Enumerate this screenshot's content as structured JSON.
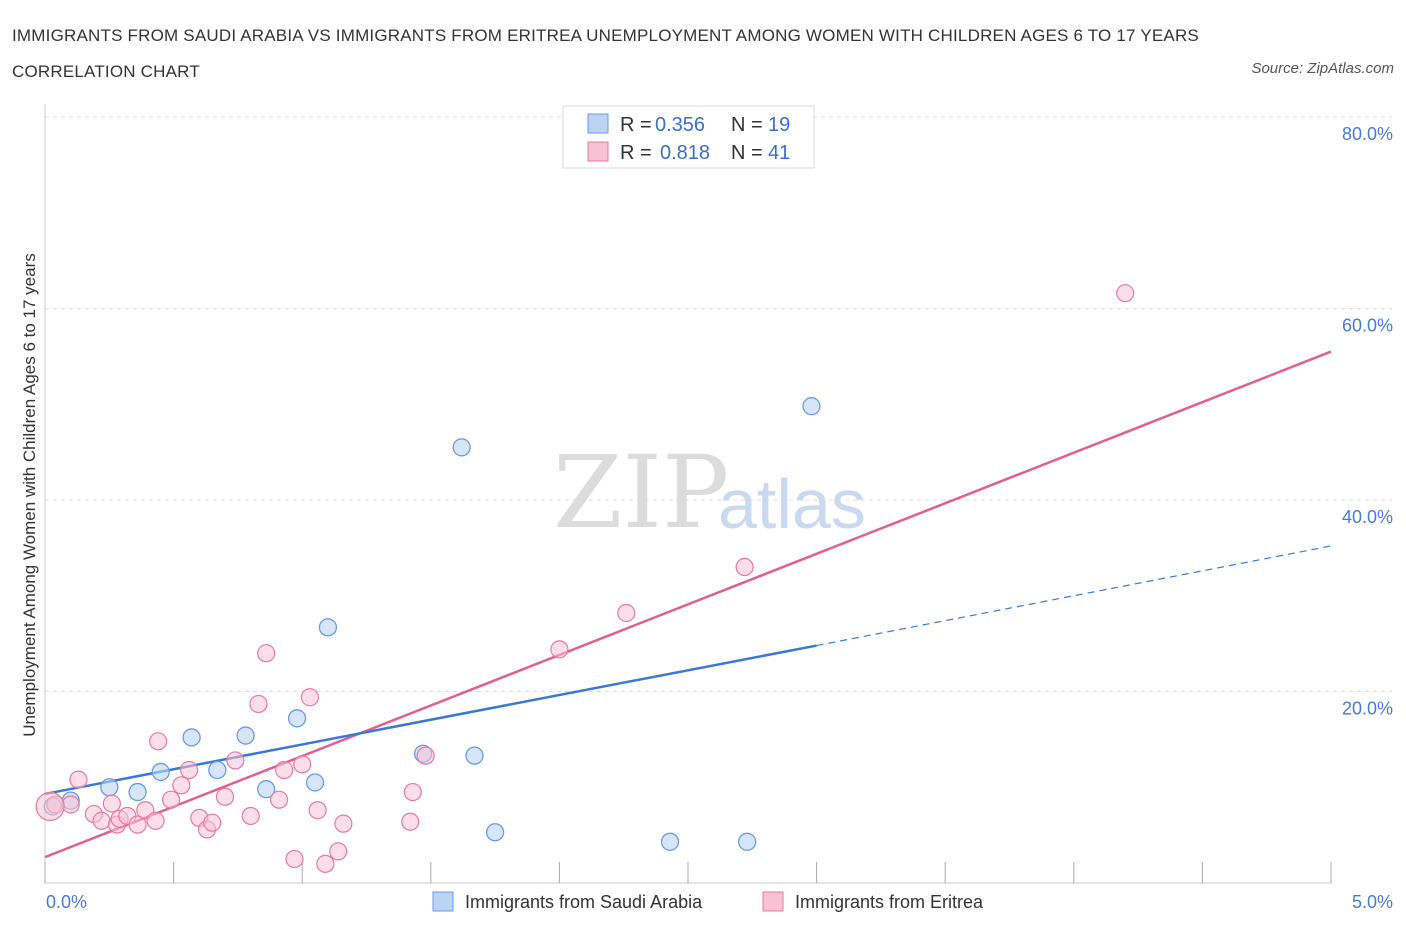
{
  "title": "IMMIGRANTS FROM SAUDI ARABIA VS IMMIGRANTS FROM ERITREA UNEMPLOYMENT AMONG WOMEN WITH CHILDREN AGES 6 TO 17 YEARS CORRELATION CHART",
  "source": "Source: ZipAtlas.com",
  "watermark": {
    "zip": "ZIP",
    "atlas": "atlas"
  },
  "colors": {
    "blue": "#6a9be0",
    "blue_fill": "#bcd3f3",
    "blue_line": "#3a78d4",
    "pink": "#e77aa0",
    "pink_fill": "#f7c2d3",
    "pink_line": "#e0608f"
  },
  "legend": {
    "r_label": "R =",
    "n_label": "N =",
    "series": [
      {
        "r": "0.356",
        "n": "19"
      },
      {
        "r": "0.818",
        "n": "41"
      }
    ]
  },
  "chart_data": {
    "type": "scatter",
    "xlabel": "",
    "ylabel": "Unemployment Among Women with Children Ages 6 to 17 years",
    "xlim": [
      0,
      5
    ],
    "ylim": [
      0,
      80
    ],
    "x_tick_labels": [
      "0.0%",
      "5.0%"
    ],
    "y_tick_labels": [
      "20.0%",
      "40.0%",
      "60.0%",
      "80.0%"
    ],
    "y_ticks": [
      20,
      40,
      60,
      80
    ],
    "grid": true,
    "legend_position": "top-center",
    "series": [
      {
        "name": "Immigrants from Saudi Arabia",
        "points": [
          [
            0.03,
            8.0
          ],
          [
            0.1,
            8.6
          ],
          [
            0.25,
            10.0
          ],
          [
            0.36,
            9.5
          ],
          [
            0.45,
            11.6
          ],
          [
            0.57,
            15.2
          ],
          [
            0.67,
            11.8
          ],
          [
            0.78,
            15.4
          ],
          [
            0.86,
            9.8
          ],
          [
            0.98,
            17.2
          ],
          [
            1.05,
            10.5
          ],
          [
            1.1,
            26.7
          ],
          [
            1.47,
            13.5
          ],
          [
            1.62,
            45.5
          ],
          [
            1.67,
            13.3
          ],
          [
            1.75,
            5.3
          ],
          [
            2.43,
            4.3
          ],
          [
            2.73,
            4.3
          ],
          [
            2.98,
            49.8
          ]
        ],
        "trend": {
          "x": [
            0.0,
            3.0
          ],
          "y": [
            9.3,
            24.8
          ]
        },
        "trend_extension": {
          "x": [
            3.0,
            5.0
          ],
          "y": [
            24.8,
            35.2
          ]
        }
      },
      {
        "name": "Immigrants from Eritrea",
        "points": [
          [
            0.04,
            8.2
          ],
          [
            0.1,
            8.2
          ],
          [
            0.13,
            10.8
          ],
          [
            0.19,
            7.2
          ],
          [
            0.22,
            6.5
          ],
          [
            0.26,
            8.3
          ],
          [
            0.28,
            6.1
          ],
          [
            0.29,
            6.7
          ],
          [
            0.32,
            7.0
          ],
          [
            0.36,
            6.1
          ],
          [
            0.39,
            7.6
          ],
          [
            0.43,
            6.5
          ],
          [
            0.44,
            14.8
          ],
          [
            0.49,
            8.7
          ],
          [
            0.53,
            10.2
          ],
          [
            0.56,
            11.8
          ],
          [
            0.6,
            6.8
          ],
          [
            0.63,
            5.6
          ],
          [
            0.65,
            6.3
          ],
          [
            0.7,
            9.0
          ],
          [
            0.74,
            12.8
          ],
          [
            0.8,
            7.0
          ],
          [
            0.83,
            18.7
          ],
          [
            0.86,
            24.0
          ],
          [
            0.91,
            8.7
          ],
          [
            0.93,
            11.8
          ],
          [
            0.97,
            2.5
          ],
          [
            1.0,
            12.4
          ],
          [
            1.03,
            19.4
          ],
          [
            1.06,
            7.6
          ],
          [
            1.09,
            2.0
          ],
          [
            1.14,
            3.3
          ],
          [
            1.16,
            6.2
          ],
          [
            1.42,
            6.4
          ],
          [
            1.43,
            9.5
          ],
          [
            1.48,
            13.3
          ],
          [
            2.0,
            24.4
          ],
          [
            2.26,
            28.2
          ],
          [
            2.72,
            33.0
          ],
          [
            4.2,
            61.6
          ],
          [
            0.02,
            8.0
          ]
        ],
        "trend": {
          "x": [
            0.0,
            5.0
          ],
          "y": [
            2.7,
            55.5
          ]
        }
      }
    ]
  }
}
